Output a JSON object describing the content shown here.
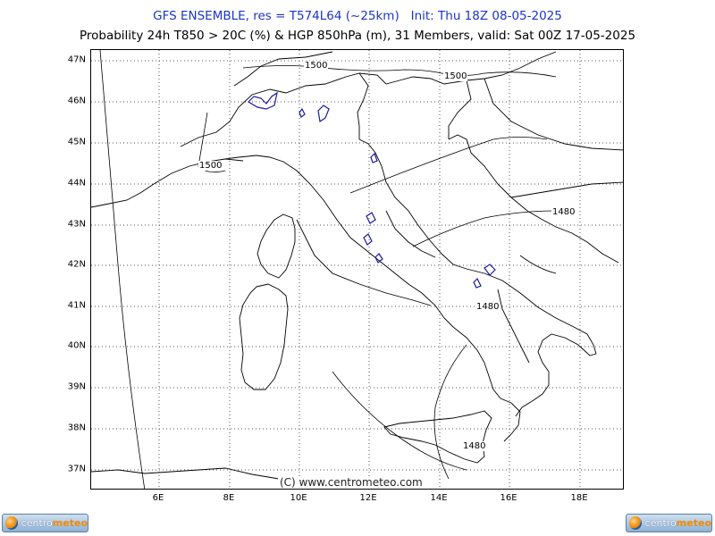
{
  "header": {
    "title": "GFS ENSEMBLE, res = T574L64 (~25km)   Init: Thu 18Z 08-05-2025",
    "subtitle": "Probability 24h T850 > 20C (%) & HGP 850hPa (m), 31 Members, valid: Sat 00Z 17-05-2025"
  },
  "map": {
    "lat_labels": [
      "47N",
      "46N",
      "45N",
      "44N",
      "43N",
      "42N",
      "41N",
      "40N",
      "39N",
      "38N",
      "37N"
    ],
    "lon_labels": [
      "6E",
      "8E",
      "10E",
      "12E",
      "14E",
      "16E",
      "18E"
    ],
    "contour_labels": [
      "1500",
      "1500",
      "1500",
      "1480",
      "1480",
      "1480"
    ],
    "copyright": "(C) www.centrometeo.com",
    "colors": {
      "coast": "#000000",
      "probability_contour": "#1a1aa0",
      "grid": "#555555"
    }
  },
  "logos": {
    "left": {
      "part1": "centro",
      "part2": "meteo"
    },
    "right": {
      "part1": "centro",
      "part2": "meteo"
    }
  }
}
